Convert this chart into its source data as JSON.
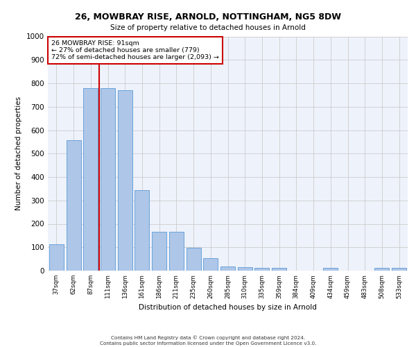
{
  "title_line1": "26, MOWBRAY RISE, ARNOLD, NOTTINGHAM, NG5 8DW",
  "title_line2": "Size of property relative to detached houses in Arnold",
  "xlabel": "Distribution of detached houses by size in Arnold",
  "ylabel": "Number of detached properties",
  "categories": [
    "37sqm",
    "62sqm",
    "87sqm",
    "111sqm",
    "136sqm",
    "161sqm",
    "186sqm",
    "211sqm",
    "235sqm",
    "260sqm",
    "285sqm",
    "310sqm",
    "335sqm",
    "359sqm",
    "384sqm",
    "409sqm",
    "434sqm",
    "459sqm",
    "483sqm",
    "508sqm",
    "533sqm"
  ],
  "values": [
    112,
    558,
    779,
    779,
    770,
    343,
    165,
    165,
    97,
    52,
    18,
    15,
    13,
    12,
    0,
    0,
    12,
    0,
    0,
    12,
    12
  ],
  "bar_color": "#aec6e8",
  "bar_edge_color": "#5b9bd5",
  "vline_color": "#cc0000",
  "annotation_text": "26 MOWBRAY RISE: 91sqm\n← 27% of detached houses are smaller (779)\n72% of semi-detached houses are larger (2,093) →",
  "annotation_box_color": "#ffffff",
  "annotation_box_edge_color": "#cc0000",
  "footer_line1": "Contains HM Land Registry data © Crown copyright and database right 2024.",
  "footer_line2": "Contains public sector information licensed under the Open Government Licence v3.0.",
  "bg_color": "#eef2fb",
  "grid_color": "#cccccc",
  "ylim": [
    0,
    1000
  ],
  "yticks": [
    0,
    100,
    200,
    300,
    400,
    500,
    600,
    700,
    800,
    900,
    1000
  ]
}
